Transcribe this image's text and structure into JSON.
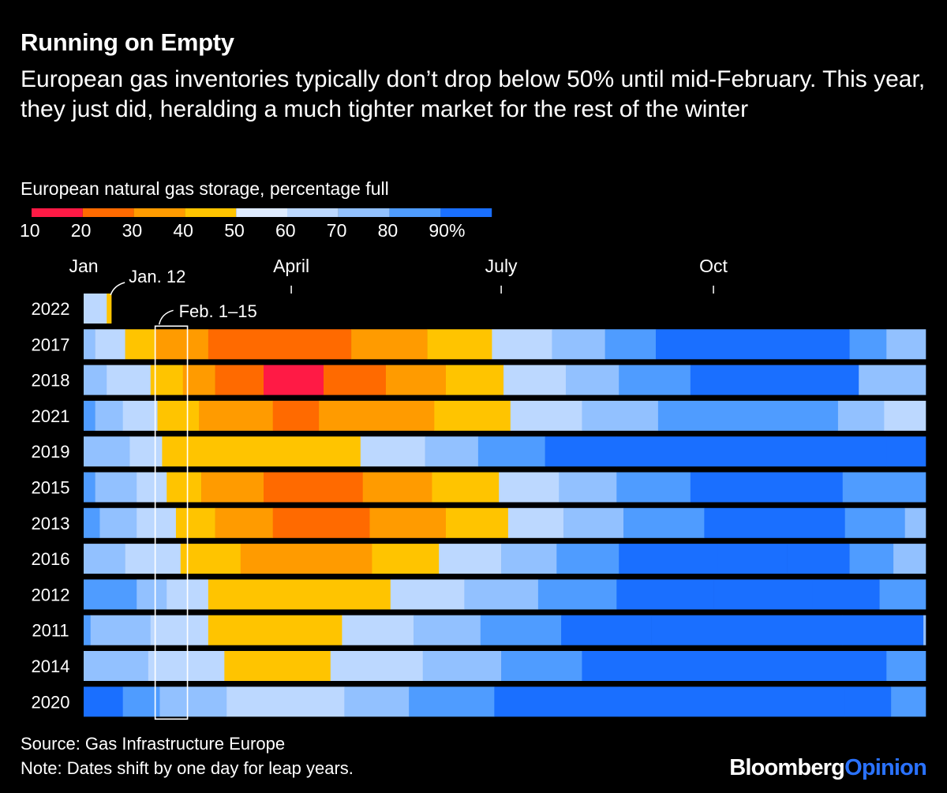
{
  "header": {
    "title": "Running on Empty",
    "subtitle": "European gas inventories typically don’t drop below 50% until mid-February. This year, they just did, heralding a much tighter market for the rest of the winter"
  },
  "legend": {
    "title": "European natural gas storage, percentage full",
    "labels": [
      "10",
      "20",
      "30",
      "40",
      "50",
      "60",
      "70",
      "80",
      "90%"
    ],
    "colors": [
      "#ff1a45",
      "#ff6a00",
      "#ff9b00",
      "#ffc400",
      "#deebff",
      "#bcd8ff",
      "#92c1ff",
      "#4f9cff",
      "#1a6fff"
    ]
  },
  "chart_data": {
    "type": "heatmap",
    "x_unit": "day of year",
    "x_ticks": [
      {
        "label": "Jan",
        "day": 1
      },
      {
        "label": "April",
        "day": 91
      },
      {
        "label": "July",
        "day": 182
      },
      {
        "label": "Oct",
        "day": 274
      }
    ],
    "annotations": [
      {
        "label": "Jan. 12",
        "day": 12
      },
      {
        "label": "Feb. 1–15",
        "start_day": 32,
        "end_day": 46
      }
    ],
    "color_scale": [
      {
        "max": 20,
        "color": "#ff1a45"
      },
      {
        "max": 30,
        "color": "#ff6a00"
      },
      {
        "max": 40,
        "color": "#ff9b00"
      },
      {
        "max": 50,
        "color": "#ffc400"
      },
      {
        "max": 60,
        "color": "#deebff"
      },
      {
        "max": 70,
        "color": "#bcd8ff"
      },
      {
        "max": 80,
        "color": "#92c1ff"
      },
      {
        "max": 90,
        "color": "#4f9cff"
      },
      {
        "max": 100,
        "color": "#1a6fff"
      }
    ],
    "rows": [
      {
        "year": "2022",
        "segments": [
          [
            1,
            65
          ],
          [
            11,
            45
          ]
        ],
        "end_day": 12
      },
      {
        "year": "2017",
        "segments": [
          [
            1,
            75
          ],
          [
            6,
            65
          ],
          [
            19,
            45
          ],
          [
            32,
            35
          ],
          [
            55,
            25
          ],
          [
            117,
            35
          ],
          [
            150,
            45
          ],
          [
            178,
            65
          ],
          [
            204,
            75
          ],
          [
            227,
            85
          ],
          [
            249,
            95
          ],
          [
            333,
            85
          ],
          [
            349,
            75
          ]
        ],
        "end_day": 365
      },
      {
        "year": "2018",
        "segments": [
          [
            1,
            75
          ],
          [
            11,
            65
          ],
          [
            30,
            45
          ],
          [
            44,
            35
          ],
          [
            58,
            25
          ],
          [
            79,
            15
          ],
          [
            105,
            25
          ],
          [
            132,
            35
          ],
          [
            158,
            45
          ],
          [
            183,
            65
          ],
          [
            210,
            75
          ],
          [
            233,
            85
          ],
          [
            264,
            95
          ],
          [
            337,
            75
          ]
        ],
        "end_day": 365
      },
      {
        "year": "2021",
        "segments": [
          [
            1,
            85
          ],
          [
            6,
            75
          ],
          [
            18,
            65
          ],
          [
            33,
            45
          ],
          [
            51,
            35
          ],
          [
            83,
            25
          ],
          [
            103,
            35
          ],
          [
            153,
            45
          ],
          [
            186,
            65
          ],
          [
            217,
            75
          ],
          [
            250,
            85
          ],
          [
            328,
            75
          ],
          [
            348,
            65
          ]
        ],
        "end_day": 365
      },
      {
        "year": "2019",
        "segments": [
          [
            1,
            75
          ],
          [
            21,
            65
          ],
          [
            35,
            45
          ],
          [
            121,
            65
          ],
          [
            149,
            75
          ],
          [
            172,
            85
          ],
          [
            201,
            95
          ],
          [
            232,
            100
          ],
          [
            349,
            95
          ]
        ],
        "end_day": 365
      },
      {
        "year": "2015",
        "segments": [
          [
            1,
            85
          ],
          [
            6,
            75
          ],
          [
            24,
            65
          ],
          [
            37,
            45
          ],
          [
            52,
            35
          ],
          [
            79,
            25
          ],
          [
            122,
            35
          ],
          [
            152,
            45
          ],
          [
            181,
            65
          ],
          [
            207,
            75
          ],
          [
            232,
            85
          ],
          [
            264,
            95
          ],
          [
            330,
            85
          ]
        ],
        "end_day": 365
      },
      {
        "year": "2013",
        "segments": [
          [
            1,
            85
          ],
          [
            8,
            75
          ],
          [
            24,
            65
          ],
          [
            41,
            45
          ],
          [
            58,
            35
          ],
          [
            83,
            25
          ],
          [
            125,
            35
          ],
          [
            158,
            45
          ],
          [
            185,
            65
          ],
          [
            209,
            75
          ],
          [
            235,
            85
          ],
          [
            270,
            95
          ],
          [
            331,
            85
          ],
          [
            357,
            75
          ]
        ],
        "end_day": 365
      },
      {
        "year": "2016",
        "segments": [
          [
            1,
            75
          ],
          [
            19,
            65
          ],
          [
            43,
            45
          ],
          [
            69,
            35
          ],
          [
            126,
            45
          ],
          [
            155,
            65
          ],
          [
            182,
            75
          ],
          [
            206,
            85
          ],
          [
            233,
            95
          ],
          [
            276,
            100
          ],
          [
            306,
            95
          ],
          [
            333,
            85
          ],
          [
            352,
            75
          ]
        ],
        "end_day": 365
      },
      {
        "year": "2012",
        "segments": [
          [
            1,
            85
          ],
          [
            24,
            75
          ],
          [
            37,
            65
          ],
          [
            55,
            45
          ],
          [
            134,
            65
          ],
          [
            166,
            75
          ],
          [
            198,
            85
          ],
          [
            232,
            95
          ],
          [
            274,
            100
          ],
          [
            317,
            95
          ],
          [
            346,
            85
          ]
        ],
        "end_day": 365
      },
      {
        "year": "2011",
        "segments": [
          [
            1,
            85
          ],
          [
            4,
            75
          ],
          [
            30,
            65
          ],
          [
            55,
            45
          ],
          [
            113,
            65
          ],
          [
            144,
            75
          ],
          [
            173,
            85
          ],
          [
            208,
            95
          ],
          [
            247,
            100
          ],
          [
            330,
            95
          ],
          [
            365,
            75
          ]
        ],
        "end_day": 365
      },
      {
        "year": "2014",
        "segments": [
          [
            1,
            75
          ],
          [
            29,
            65
          ],
          [
            62,
            45
          ],
          [
            108,
            65
          ],
          [
            148,
            75
          ],
          [
            182,
            85
          ],
          [
            217,
            95
          ],
          [
            263,
            100
          ],
          [
            330,
            95
          ],
          [
            349,
            85
          ]
        ],
        "end_day": 365
      },
      {
        "year": "2020",
        "segments": [
          [
            1,
            95
          ],
          [
            18,
            85
          ],
          [
            34,
            75
          ],
          [
            63,
            65
          ],
          [
            114,
            75
          ],
          [
            142,
            85
          ],
          [
            179,
            95
          ],
          [
            233,
            100
          ],
          [
            331,
            95
          ],
          [
            351,
            85
          ]
        ],
        "end_day": 365
      }
    ]
  },
  "footer": {
    "source": "Source: Gas Infrastructure Europe",
    "note": "Note: Dates shift by one day for leap years.",
    "brand_a": "Bloomberg",
    "brand_b": "Opinion"
  }
}
